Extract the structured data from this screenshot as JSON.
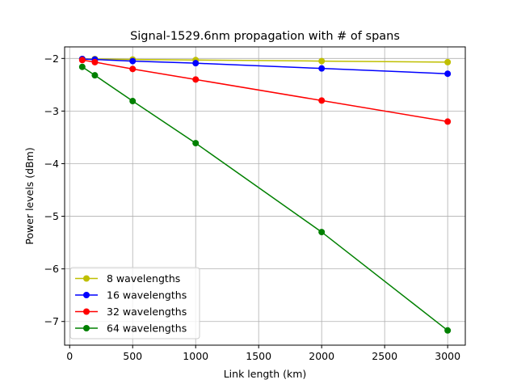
{
  "chart_data": {
    "type": "line",
    "title": "Signal-1529.6nm propagation with # of spans",
    "xlabel": "Link length (km)",
    "ylabel": "Power levels (dBm)",
    "x": [
      100,
      200,
      500,
      1000,
      2000,
      3000
    ],
    "xlim": [
      -40,
      3140
    ],
    "ylim": [
      -7.45,
      -1.78
    ],
    "xticks": [
      0,
      500,
      1000,
      1500,
      2000,
      2500,
      3000
    ],
    "yticks": [
      -7,
      -6,
      -5,
      -4,
      -3,
      -2
    ],
    "grid": true,
    "legend_position": "lower-left",
    "series": [
      {
        "name": "8 wavelengths",
        "color": "#bfbf00",
        "values": [
          -2.01,
          -2.01,
          -2.02,
          -2.03,
          -2.05,
          -2.07
        ]
      },
      {
        "name": "16 wavelengths",
        "color": "#0000ff",
        "values": [
          -2.01,
          -2.02,
          -2.05,
          -2.09,
          -2.19,
          -2.29
        ]
      },
      {
        "name": "32 wavelengths",
        "color": "#ff0000",
        "values": [
          -2.03,
          -2.07,
          -2.2,
          -2.4,
          -2.8,
          -3.2
        ]
      },
      {
        "name": "64 wavelengths",
        "color": "#008000",
        "values": [
          -2.16,
          -2.32,
          -2.81,
          -3.61,
          -5.3,
          -7.17
        ]
      }
    ]
  }
}
